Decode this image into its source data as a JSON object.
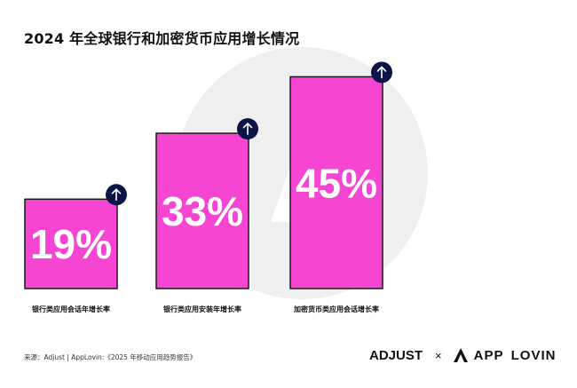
{
  "title": "2024 年全球银行和加密货币应用增长情况",
  "source": "来源：Adjust | AppLovin:《2025 年移动应用趋势报告》",
  "logos": {
    "adjust": "ADJUST",
    "times": "×",
    "applovin_part1": "APP",
    "applovin_part2": "LOVIN"
  },
  "colors": {
    "bar_fill": "#F545D2",
    "bar_stroke": "#1A1A1A",
    "badge": "#0B1447",
    "watermark": "#EFEFEF"
  },
  "chart_data": {
    "type": "bar",
    "categories": [
      "银行类应用会话年增长率",
      "银行类应用安装年增长率",
      "加密货币类应用会话增长率"
    ],
    "values": [
      19,
      33,
      45
    ],
    "value_labels": [
      "19%",
      "33%",
      "45%"
    ],
    "unit": "%",
    "indicator": "arrow-up-icon",
    "ylim": [
      0,
      50
    ]
  }
}
